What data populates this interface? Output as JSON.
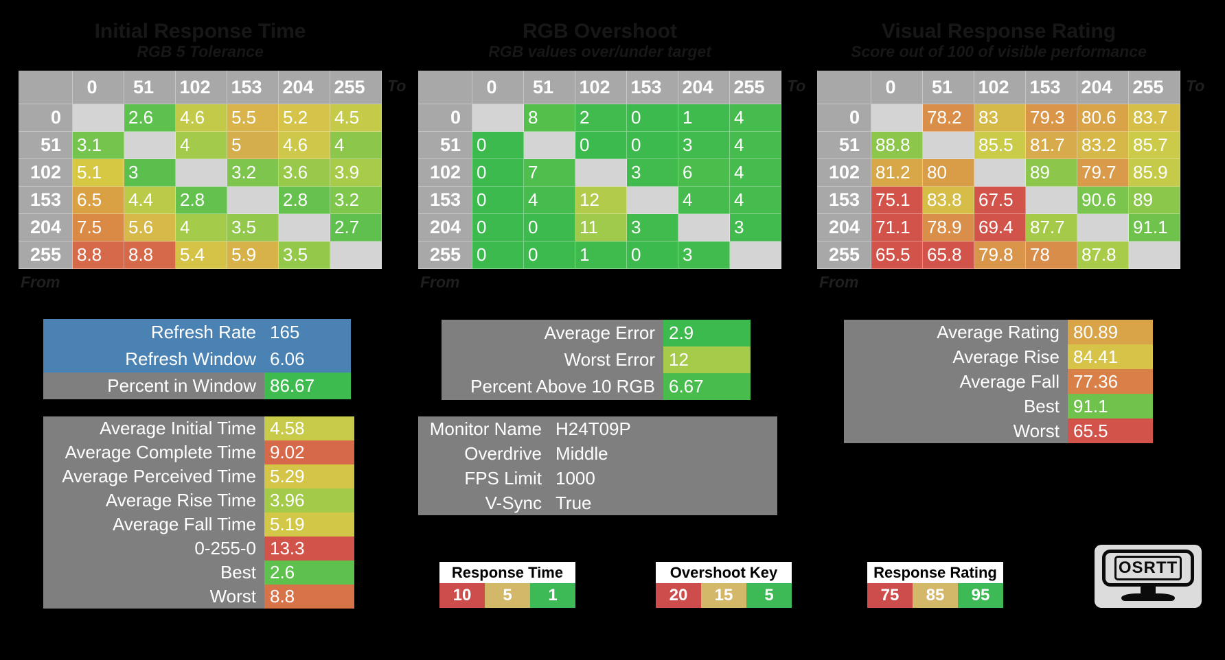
{
  "page": {
    "background": "#000000"
  },
  "chart_data": [
    {
      "type": "heatmap",
      "title": "Initial Response Time",
      "subtitle": "RGB 5 Tolerance",
      "axis_to_label": "To",
      "axis_from_label": "From",
      "categories": [
        0,
        51,
        102,
        153,
        204,
        255
      ],
      "values": [
        [
          null,
          2.6,
          4.6,
          5.5,
          5.2,
          4.5
        ],
        [
          3.1,
          null,
          4,
          5,
          4.6,
          4
        ],
        [
          5.1,
          3,
          null,
          3.2,
          3.6,
          3.9
        ],
        [
          6.5,
          4.4,
          2.8,
          null,
          2.8,
          3.2
        ],
        [
          7.5,
          5.6,
          4,
          3.5,
          null,
          2.7
        ],
        [
          8.8,
          8.8,
          5.4,
          5.9,
          3.5,
          null
        ]
      ],
      "cell_colors": [
        [
          null,
          "#5ec14e",
          "#c3ca49",
          "#d8b44b",
          "#d5c449",
          "#c6ca49"
        ],
        [
          "#74c44e",
          null,
          "#a3ca4a",
          "#d4ad4c",
          "#cdc849",
          "#8cc74b"
        ],
        [
          "#d6c843",
          "#5abf4d",
          null,
          "#7dc54d",
          "#99c94b",
          "#a8cb4a"
        ],
        [
          "#d9a143",
          "#bcca49",
          "#64c14e",
          null,
          "#66c14e",
          "#7ec64c"
        ],
        [
          "#da8a44",
          "#d6b948",
          "#a4cb4a",
          "#92c84b",
          null,
          "#60c04e"
        ],
        [
          "#d5694a",
          "#d5694a",
          "#d5c348",
          "#d6b248",
          "#93c84b",
          null
        ]
      ]
    },
    {
      "type": "heatmap",
      "title": "RGB Overshoot",
      "subtitle": "RGB values over/under target",
      "axis_to_label": "To",
      "axis_from_label": "From",
      "categories": [
        0,
        51,
        102,
        153,
        204,
        255
      ],
      "values": [
        [
          null,
          8,
          2,
          0,
          1,
          4
        ],
        [
          0,
          null,
          0,
          0,
          3,
          4
        ],
        [
          0,
          7,
          null,
          3,
          6,
          4
        ],
        [
          0,
          4,
          12,
          null,
          4,
          4
        ],
        [
          0,
          0,
          11,
          3,
          null,
          3
        ],
        [
          0,
          0,
          1,
          0,
          3,
          null
        ]
      ],
      "cell_colors": [
        [
          null,
          "#55bf4c",
          "#41bb4e",
          "#3dba4e",
          "#3fbb4e",
          "#45bc4d"
        ],
        [
          "#3dba4e",
          null,
          "#3dba4e",
          "#3dba4e",
          "#42bb4e",
          "#45bc4d"
        ],
        [
          "#3dba4e",
          "#4fbe4d",
          null,
          "#42bb4e",
          "#4abd4d",
          "#45bc4d"
        ],
        [
          "#3dba4e",
          "#45bc4d",
          "#b3cb4a",
          null,
          "#45bc4d",
          "#45bc4d"
        ],
        [
          "#3dba4e",
          "#3dba4e",
          "#9fca4b",
          "#42bb4e",
          null,
          "#42bb4e"
        ],
        [
          "#3dba4e",
          "#3dba4e",
          "#3fbb4e",
          "#3dba4e",
          "#42bb4e",
          null
        ]
      ]
    },
    {
      "type": "heatmap",
      "title": "Visual Response Rating",
      "subtitle": "Score out of 100 of visible performance",
      "axis_to_label": "To",
      "axis_from_label": "From",
      "categories": [
        0,
        51,
        102,
        153,
        204,
        255
      ],
      "values": [
        [
          null,
          78.2,
          83,
          79.3,
          80.6,
          83.7
        ],
        [
          88.8,
          null,
          85.5,
          81.7,
          83.2,
          85.7
        ],
        [
          81.2,
          80,
          null,
          89,
          79.7,
          85.9
        ],
        [
          75.1,
          83.8,
          67.5,
          null,
          90.6,
          89
        ],
        [
          71.1,
          78.9,
          69.4,
          87.7,
          null,
          91.1
        ],
        [
          65.5,
          65.8,
          79.8,
          78,
          87.8,
          null
        ]
      ],
      "cell_colors": [
        [
          null,
          "#d98e49",
          "#d6ba49",
          "#d99649",
          "#d9a348",
          "#d5bf49"
        ],
        [
          "#8cc74b",
          null,
          "#c9cb49",
          "#d7ab4b",
          "#d6b849",
          "#cbcb49"
        ],
        [
          "#d8a848",
          "#d99d48",
          null,
          "#8cc74b",
          "#d99a49",
          "#c6ca49"
        ],
        [
          "#d25349",
          "#d6bd48",
          "#d25349",
          null,
          "#79c54d",
          "#8bc74b"
        ],
        [
          "#d25349",
          "#d98f49",
          "#d25349",
          "#a5ca4a",
          null,
          "#6fc34d"
        ],
        [
          "#d25349",
          "#d25349",
          "#d99549",
          "#d98d4a",
          "#a8cb4a",
          null
        ]
      ]
    }
  ],
  "stat_blocks": {
    "refresh_block": {
      "rows": [
        {
          "label": "Refresh Rate",
          "value": 165,
          "label_bg": "#4a82b4",
          "value_bg": "#4a82b4"
        },
        {
          "label": "Refresh Window",
          "value": 6.06,
          "label_bg": "#4a82b4",
          "value_bg": "#4a82b4"
        },
        {
          "label": "Percent in Window",
          "value": 86.67,
          "label_bg": "#7f7f7f",
          "value_bg": "#3ebb4e"
        }
      ]
    },
    "error_block": {
      "rows": [
        {
          "label": "Average Error",
          "value": 2.9,
          "label_bg": "#7f7f7f",
          "value_bg": "#3dba4e"
        },
        {
          "label": "Worst Error",
          "value": 12,
          "label_bg": "#7f7f7f",
          "value_bg": "#a6ca4a"
        },
        {
          "label": "Percent Above 10 RGB",
          "value": 6.67,
          "label_bg": "#7f7f7f",
          "value_bg": "#48bc4d"
        }
      ]
    },
    "rating_block": {
      "rows": [
        {
          "label": "Average Rating",
          "value": 80.89,
          "label_bg": "#7f7f7f",
          "value_bg": "#d9a348"
        },
        {
          "label": "Average Rise",
          "value": 84.41,
          "label_bg": "#7f7f7f",
          "value_bg": "#d6c348"
        },
        {
          "label": "Average Fall",
          "value": 77.36,
          "label_bg": "#7f7f7f",
          "value_bg": "#d97f48"
        },
        {
          "label": "Best",
          "value": 91.1,
          "label_bg": "#7f7f7f",
          "value_bg": "#6fc34d"
        },
        {
          "label": "Worst",
          "value": 65.5,
          "label_bg": "#7f7f7f",
          "value_bg": "#d25349"
        }
      ]
    },
    "timing_block": {
      "rows": [
        {
          "label": "Average Initial Time",
          "value": 4.58,
          "label_bg": "#7f7f7f",
          "value_bg": "#c8ca49"
        },
        {
          "label": "Average Complete Time",
          "value": 9.02,
          "label_bg": "#7f7f7f",
          "value_bg": "#d5694a"
        },
        {
          "label": "Average Perceived Time",
          "value": 5.29,
          "label_bg": "#7f7f7f",
          "value_bg": "#d4c548"
        },
        {
          "label": "Average Rise Time",
          "value": 3.96,
          "label_bg": "#7f7f7f",
          "value_bg": "#a4ca4a"
        },
        {
          "label": "Average Fall Time",
          "value": 5.19,
          "label_bg": "#7f7f7f",
          "value_bg": "#d3c748"
        },
        {
          "label": "0-255-0",
          "value": 13.3,
          "label_bg": "#7f7f7f",
          "value_bg": "#d25349"
        },
        {
          "label": "Best",
          "value": 2.6,
          "label_bg": "#7f7f7f",
          "value_bg": "#5ec14e"
        },
        {
          "label": "Worst",
          "value": 8.8,
          "label_bg": "#7f7f7f",
          "value_bg": "#d87349"
        }
      ]
    },
    "monitor_block": {
      "rows": [
        {
          "label": "Monitor Name",
          "value": "H24T09P",
          "label_bg": "#7f7f7f",
          "value_bg": "#7f7f7f"
        },
        {
          "label": "Overdrive",
          "value": "Middle",
          "label_bg": "#7f7f7f",
          "value_bg": "#7f7f7f"
        },
        {
          "label": "FPS Limit",
          "value": 1000,
          "label_bg": "#7f7f7f",
          "value_bg": "#7f7f7f"
        },
        {
          "label": "V-Sync",
          "value": "True",
          "label_bg": "#7f7f7f",
          "value_bg": "#7f7f7f"
        }
      ]
    }
  },
  "keys": [
    {
      "title": "Response Time Key",
      "cells": [
        {
          "value": 10,
          "color": "#cd4d4d"
        },
        {
          "value": 5,
          "color": "#d4b86a"
        },
        {
          "value": 1,
          "color": "#3dba55"
        }
      ]
    },
    {
      "title": "Overshoot Key",
      "cells": [
        {
          "value": 20,
          "color": "#cd4d4d"
        },
        {
          "value": 15,
          "color": "#d4b86a"
        },
        {
          "value": 5,
          "color": "#3dba55"
        }
      ]
    },
    {
      "title": "Response Rating Key",
      "cells": [
        {
          "value": 75,
          "color": "#cd4d4d"
        },
        {
          "value": 85,
          "color": "#d4b86a"
        },
        {
          "value": 95,
          "color": "#3dba55"
        }
      ]
    }
  ],
  "logo": {
    "text": "OSRTT"
  }
}
